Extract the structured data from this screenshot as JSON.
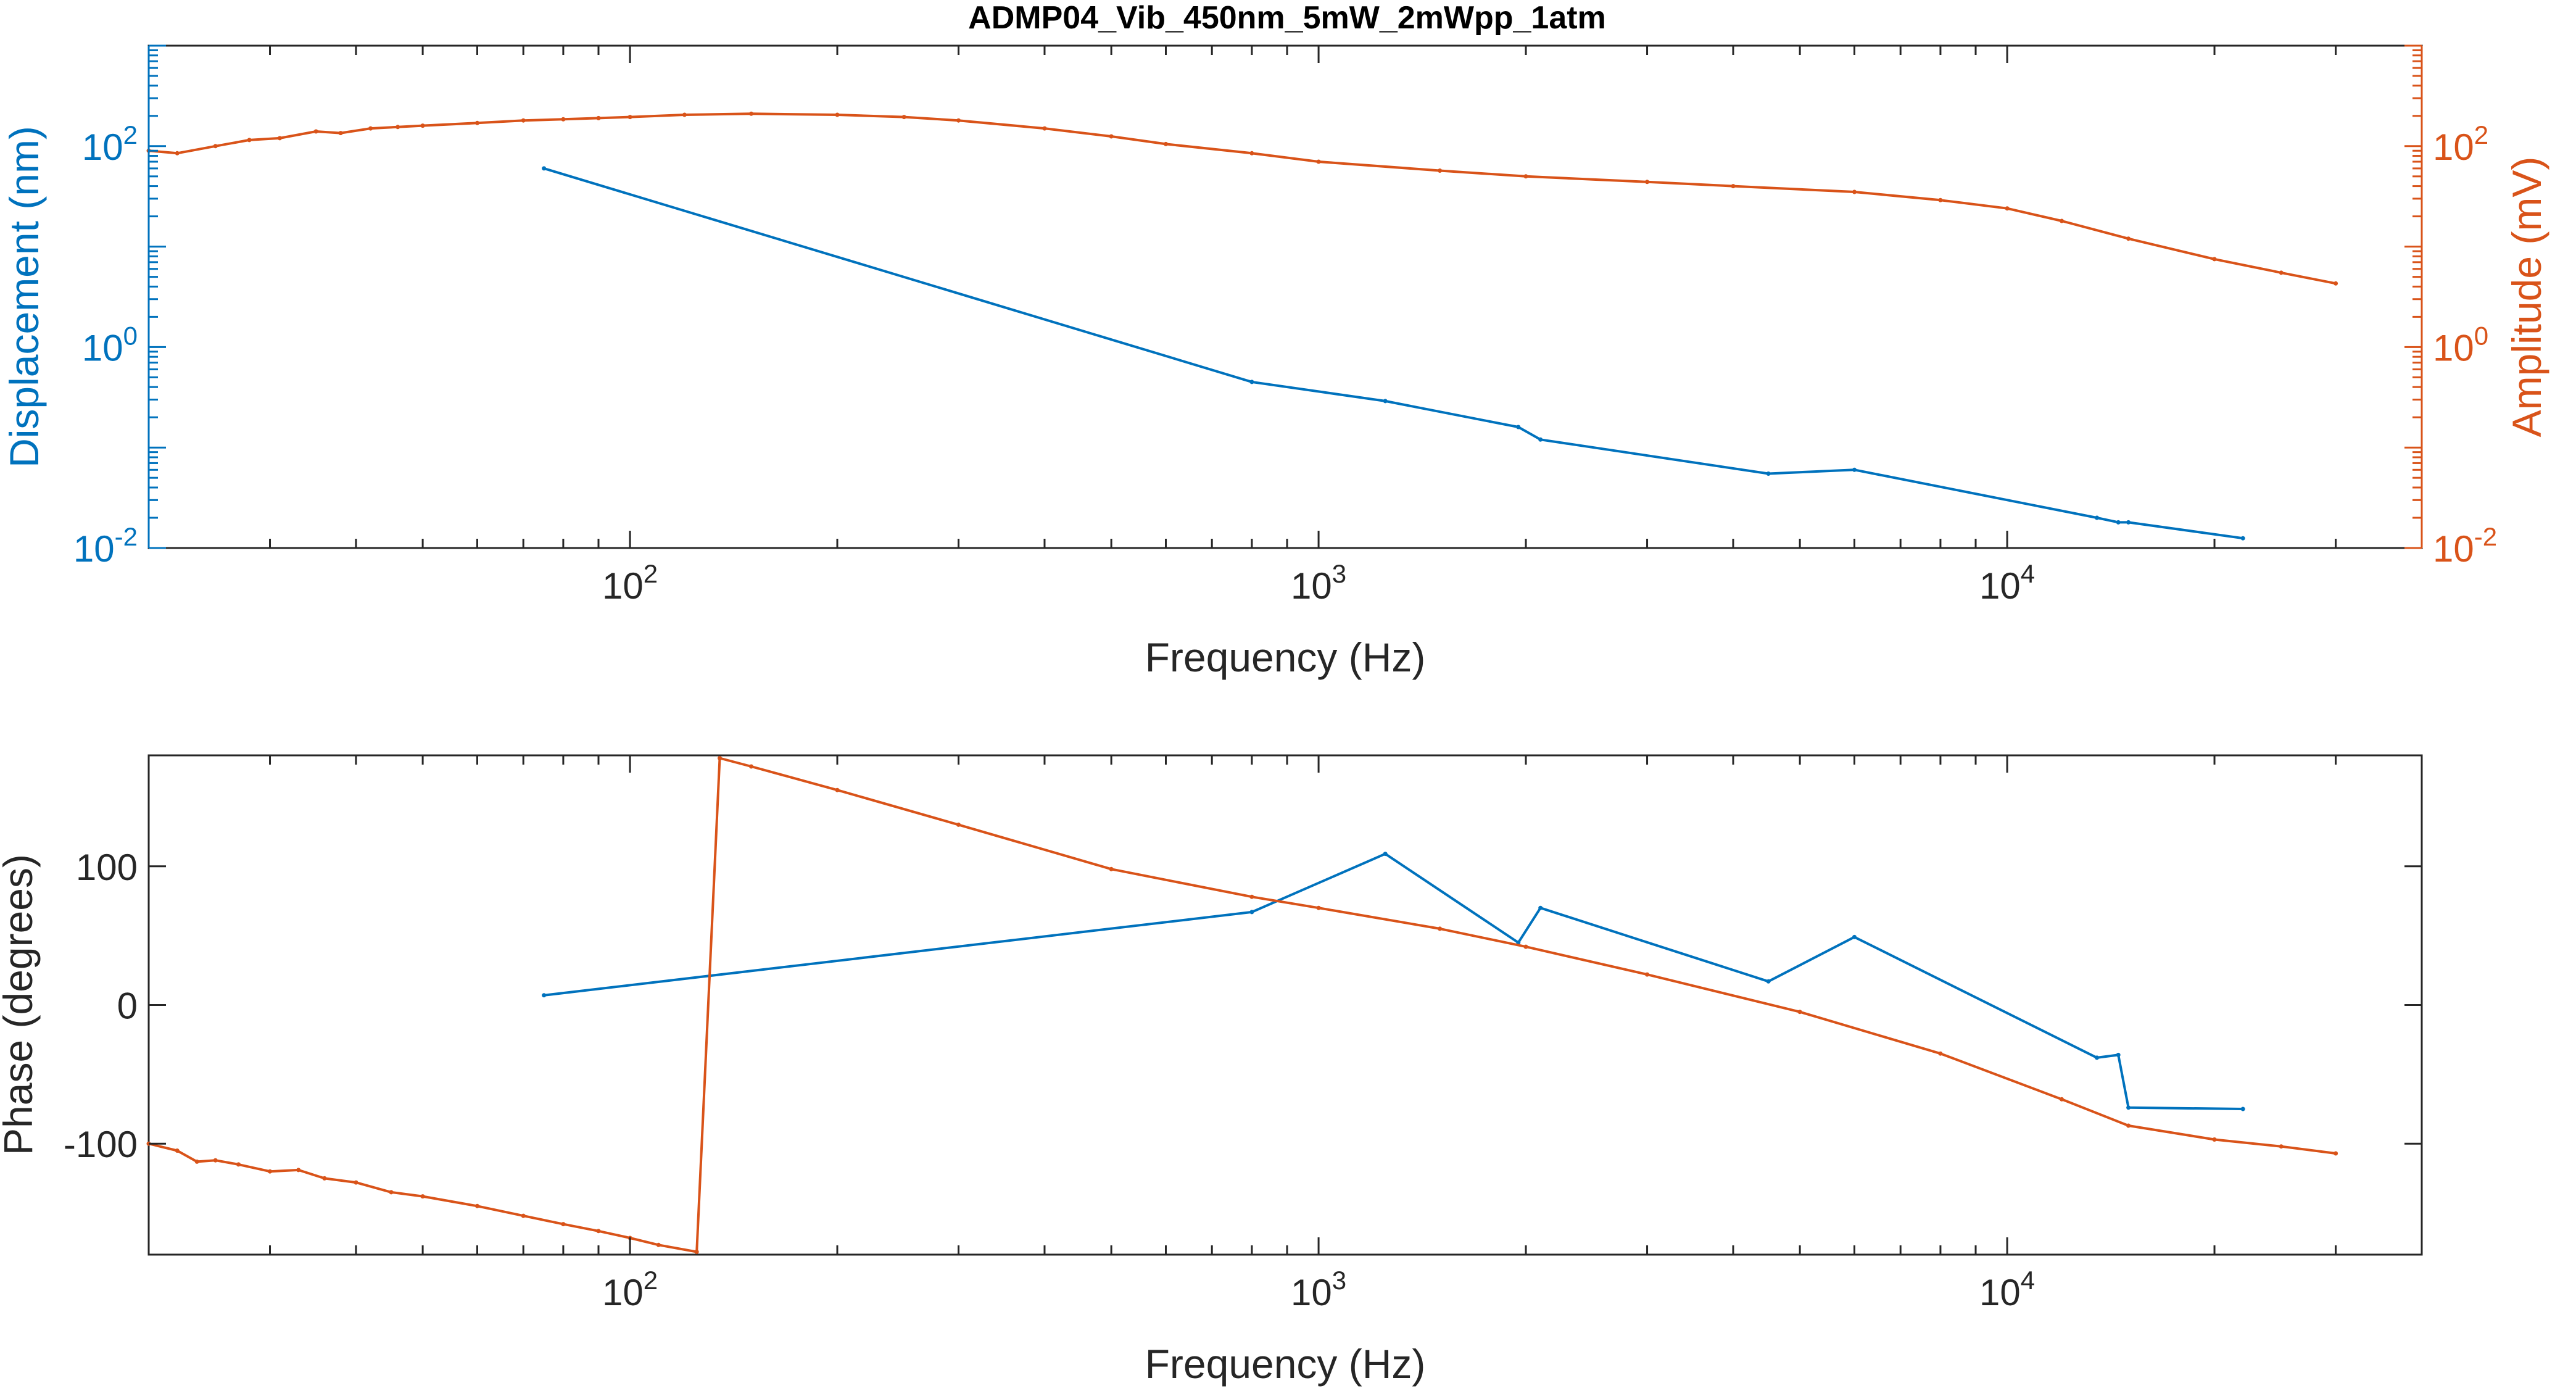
{
  "title": "ADMP04_Vib_450nm_5mW_2mWpp_1atm",
  "colors": {
    "blue": "#0072BD",
    "orange": "#D95319",
    "axis": "#262626",
    "background": "#ffffff"
  },
  "chart_data": [
    {
      "type": "line",
      "x_scale": "log",
      "y_scale": "log",
      "xlabel": "Frequency (Hz)",
      "ylabel_left": "Displacement (nm)",
      "ylabel_right": "Amplitude (mV)",
      "xlim": [
        20,
        40000
      ],
      "ylim_left": [
        0.01,
        1000
      ],
      "ylim_right": [
        0.01,
        1000
      ],
      "x_tick_labels": [
        "10^2",
        "10^3",
        "10^4"
      ],
      "x_ticks": [
        100,
        1000,
        10000
      ],
      "y_tick_labels_left": [
        "10^-2",
        "10^0",
        "10^2"
      ],
      "y_tick_labels_right": [
        "10^-2",
        "10^0",
        "10^2"
      ],
      "y_ticks": [
        0.01,
        1,
        100
      ],
      "grid": false,
      "legend": "none",
      "series": [
        {
          "axis": "left",
          "color": "#0072BD",
          "x": [
            75,
            800,
            1250,
            1950,
            2100,
            4500,
            6000,
            13500,
            14500,
            15000,
            22000
          ],
          "y": [
            60,
            0.45,
            0.29,
            0.16,
            0.12,
            0.055,
            0.06,
            0.02,
            0.018,
            0.018,
            0.0125
          ]
        },
        {
          "axis": "right",
          "color": "#D95319",
          "x": [
            20,
            22,
            25,
            28,
            31,
            35,
            38,
            42,
            46,
            50,
            60,
            70,
            80,
            90,
            100,
            120,
            150,
            200,
            250,
            300,
            400,
            500,
            600,
            800,
            1000,
            1500,
            2000,
            3000,
            4000,
            6000,
            8000,
            10000,
            12000,
            15000,
            20000,
            25000,
            30000
          ],
          "y": [
            90,
            85,
            100,
            115,
            120,
            140,
            135,
            150,
            155,
            160,
            170,
            180,
            185,
            190,
            195,
            205,
            210,
            205,
            195,
            180,
            150,
            125,
            105,
            85,
            70,
            57,
            50,
            44,
            40,
            35,
            29,
            24,
            18,
            12,
            7.5,
            5.5,
            4.3
          ]
        }
      ]
    },
    {
      "type": "line",
      "x_scale": "log",
      "y_scale": "linear",
      "xlabel": "Frequency (Hz)",
      "ylabel": "Phase (degrees)",
      "xlim": [
        20,
        40000
      ],
      "ylim": [
        -180,
        180
      ],
      "x_tick_labels": [
        "10^2",
        "10^3",
        "10^4"
      ],
      "x_ticks": [
        100,
        1000,
        10000
      ],
      "y_ticks": [
        -100,
        0,
        100
      ],
      "grid": false,
      "legend": "none",
      "series": [
        {
          "color": "#0072BD",
          "x": [
            75,
            800,
            1250,
            1950,
            2100,
            4500,
            6000,
            13500,
            14500,
            15000,
            22000
          ],
          "y": [
            7,
            67,
            109,
            45,
            70,
            17,
            49,
            -38,
            -36,
            -74,
            -75
          ]
        },
        {
          "color": "#D95319",
          "x": [
            20,
            22,
            23.5,
            25,
            27,
            30,
            33,
            36,
            40,
            45,
            50,
            60,
            70,
            80,
            90,
            100,
            110,
            125,
            135,
            150,
            200,
            300,
            500,
            800,
            1000,
            1500,
            2000,
            3000,
            5000,
            8000,
            12000,
            15000,
            20000,
            25000,
            30000
          ],
          "y": [
            -100,
            -105,
            -113,
            -112,
            -115,
            -120,
            -119,
            -125,
            -128,
            -135,
            -138,
            -145,
            -152,
            -158,
            -163,
            -168,
            -173,
            -178,
            178,
            172,
            155,
            130,
            98,
            78,
            70,
            55,
            42,
            22,
            -5,
            -35,
            -68,
            -87,
            -97,
            -102,
            -107
          ]
        }
      ]
    }
  ]
}
